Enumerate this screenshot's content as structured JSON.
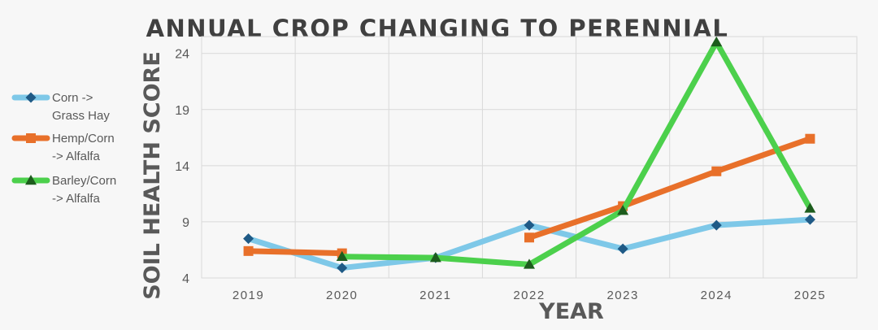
{
  "chart_data": {
    "type": "line",
    "title": "ANNUAL CROP CHANGING TO PERENNIAL",
    "xlabel": "YEAR",
    "ylabel": "SOIL HEALTH SCORE",
    "categories": [
      "2019",
      "2020",
      "2021",
      "2022",
      "2023",
      "2024",
      "2025"
    ],
    "yticks": [
      4,
      9,
      14,
      19,
      24
    ],
    "ylim": [
      4,
      25.5
    ],
    "grid": true,
    "legend_position": "left",
    "series": [
      {
        "name": "Corn -> Grass Hay",
        "legend_lines": [
          "Corn ->",
          "Grass Hay"
        ],
        "color": "#7ec8e8",
        "marker": "diamond",
        "marker_color": "#1f5a86",
        "values": [
          7.5,
          4.9,
          5.8,
          8.7,
          6.6,
          8.7,
          9.2
        ]
      },
      {
        "name": "Hemp/Corn -> Alfalfa",
        "legend_lines": [
          "Hemp/Corn",
          "-> Alfalfa"
        ],
        "color": "#e8702a",
        "marker": "square",
        "marker_color": "#e8702a",
        "values": [
          6.4,
          6.2,
          null,
          7.6,
          10.4,
          13.5,
          16.4
        ]
      },
      {
        "name": "Barley/Corn -> Alfalfa",
        "legend_lines": [
          "Barley/Corn",
          "-> Alfalfa"
        ],
        "color": "#4cd04c",
        "marker": "triangle",
        "marker_color": "#1d5c1d",
        "values": [
          null,
          5.9,
          5.8,
          5.2,
          10.0,
          25.0,
          10.2
        ]
      }
    ]
  }
}
